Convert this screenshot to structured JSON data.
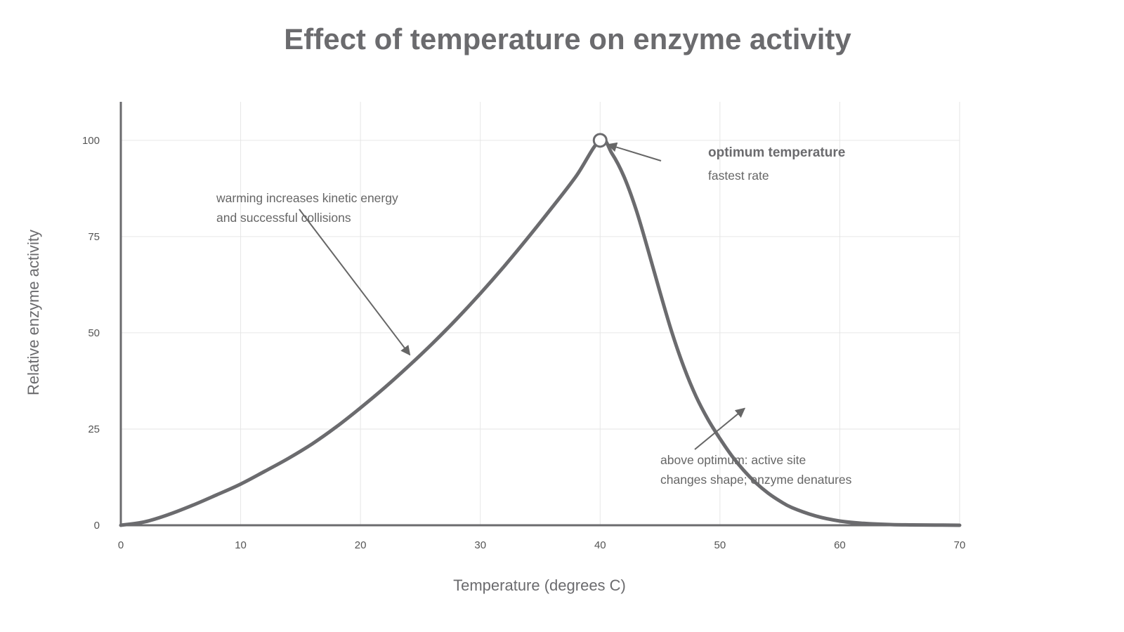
{
  "chart_data": {
    "type": "line",
    "title": "Effect of temperature on enzyme activity",
    "xlabel": "Temperature (degrees C)",
    "ylabel": "Relative enzyme activity",
    "xlim": [
      0,
      70
    ],
    "ylim": [
      0,
      110
    ],
    "x_ticks": [
      0,
      10,
      20,
      30,
      40,
      50,
      60,
      70
    ],
    "y_ticks": [
      0,
      25,
      50,
      75,
      100
    ],
    "grid": true,
    "legend": "none",
    "series": [
      {
        "x": [
          0,
          2,
          4,
          6,
          8,
          10,
          12,
          14,
          16,
          18,
          20,
          22,
          24,
          26,
          28,
          30,
          32,
          34,
          36,
          38,
          40,
          41,
          42,
          43,
          44,
          45,
          46,
          47,
          48,
          49,
          50,
          51,
          52,
          53,
          54,
          55,
          56,
          58,
          60,
          62,
          64,
          66,
          68,
          70
        ],
        "y": [
          0,
          0.9,
          2.8,
          5.2,
          7.9,
          10.7,
          14.0,
          17.4,
          21.2,
          25.6,
          30.5,
          35.7,
          41.3,
          47.2,
          53.5,
          60.2,
          67.3,
          74.8,
          82.6,
          90.7,
          100,
          96.5,
          90.5,
          82.0,
          71.5,
          60.5,
          50.0,
          41.0,
          33.5,
          27.5,
          22.5,
          18.0,
          14.2,
          11.0,
          8.4,
          6.3,
          4.6,
          2.4,
          1.1,
          0.5,
          0.2,
          0.1,
          0.05,
          0
        ]
      }
    ],
    "peak": {
      "x": 40,
      "y": 100
    },
    "annotations": [
      {
        "lines": [
          "warming increases kinetic energy",
          "and successful collisions"
        ],
        "points_to": {
          "x": 24,
          "y": 45
        }
      },
      {
        "title": "optimum temperature",
        "subtitle": "fastest rate",
        "points_to": {
          "x": 40,
          "y": 100
        }
      },
      {
        "lines": [
          "above optimum: active site",
          "changes shape; enzyme denatures"
        ],
        "points_to": {
          "x": 52,
          "y": 30
        }
      }
    ]
  },
  "colors": {
    "line": "#6b6b6e",
    "grid": "#e6e6e6",
    "text": "#666666",
    "background": "#ffffff"
  }
}
